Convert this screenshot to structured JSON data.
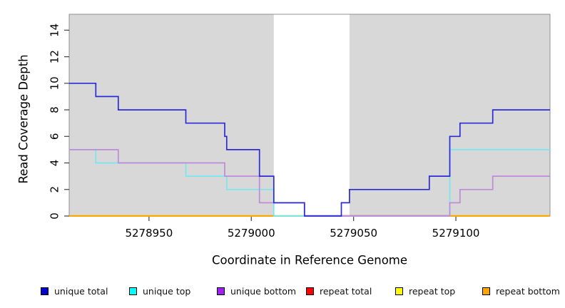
{
  "chart_data": {
    "type": "line",
    "subtype": "step-coverage",
    "title": "",
    "xlabel": "Coordinate in Reference Genome",
    "ylabel": "Read Coverage Depth",
    "xlim": [
      5278911,
      5279146
    ],
    "ylim": [
      0,
      15.2
    ],
    "x_ticks": [
      5278950,
      5279000,
      5279050,
      5279100
    ],
    "y_ticks": [
      0,
      2,
      4,
      6,
      8,
      10,
      12,
      14
    ],
    "grid": false,
    "legend_position": "bottom",
    "plot_bg_color": "#d8d8d8",
    "gap_region": {
      "x_start": 5279011,
      "x_end": 5279048,
      "color": "#ffffff"
    },
    "series": [
      {
        "name": "unique total",
        "line_color": "#2b2bd6",
        "legend_fill": "#0000cd",
        "steps": [
          [
            5278911,
            10
          ],
          [
            5278924,
            9
          ],
          [
            5278935,
            8
          ],
          [
            5278968,
            7
          ],
          [
            5278987,
            6
          ],
          [
            5278988,
            5
          ],
          [
            5279004,
            3
          ],
          [
            5279011,
            1
          ],
          [
            5279026,
            0
          ],
          [
            5279044,
            1
          ],
          [
            5279048,
            2
          ],
          [
            5279087,
            3
          ],
          [
            5279097,
            6
          ],
          [
            5279102,
            7
          ],
          [
            5279118,
            8
          ]
        ]
      },
      {
        "name": "unique top",
        "line_color": "#76e7ee",
        "legend_fill": "#00ffff",
        "steps": [
          [
            5278911,
            5
          ],
          [
            5278924,
            4
          ],
          [
            5278968,
            3
          ],
          [
            5278988,
            2
          ],
          [
            5279011,
            0
          ],
          [
            5279097,
            5
          ]
        ]
      },
      {
        "name": "unique bottom",
        "line_color": "#bd8bd9",
        "legend_fill": "#a020f0",
        "steps": [
          [
            5278911,
            5
          ],
          [
            5278935,
            4
          ],
          [
            5278987,
            3
          ],
          [
            5279004,
            1
          ],
          [
            5279026,
            0
          ],
          [
            5279097,
            1
          ],
          [
            5279102,
            2
          ],
          [
            5279118,
            3
          ]
        ]
      },
      {
        "name": "repeat total",
        "line_color": "#dd0000",
        "legend_fill": "#ff0000",
        "steps": [
          [
            5278911,
            0
          ]
        ]
      },
      {
        "name": "repeat top",
        "line_color": "#eeee00",
        "legend_fill": "#ffff00",
        "steps": [
          [
            5278911,
            0
          ]
        ]
      },
      {
        "name": "repeat bottom",
        "line_color": "#ffa500",
        "legend_fill": "#ffa500",
        "steps": [
          [
            5278911,
            0
          ]
        ]
      }
    ],
    "draw_order": [
      3,
      4,
      5,
      1,
      2,
      0
    ],
    "zero_line_segments": [
      {
        "x_start": 5278911,
        "x_end": 5279011,
        "color": "#ffa500"
      },
      {
        "x_start": 5279011,
        "x_end": 5279026,
        "color": "#93d8a2"
      },
      {
        "x_start": 5279026,
        "x_end": 5279044,
        "color": "#5a50e0"
      },
      {
        "x_start": 5279044,
        "x_end": 5279097,
        "color": "#c9506e"
      },
      {
        "x_start": 5279097,
        "x_end": 5279146,
        "color": "#ffa500"
      }
    ]
  }
}
